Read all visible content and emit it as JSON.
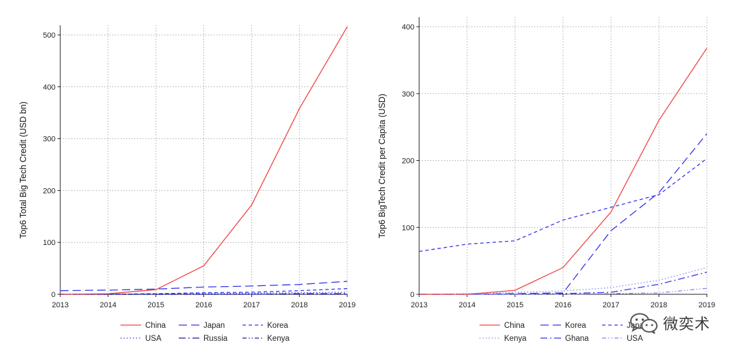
{
  "colors": {
    "red": "#ee4444",
    "blue": "#3333ee",
    "navy": "#1a1aa8",
    "grid": "#aaaaaa"
  },
  "watermark": {
    "text": "微奕术",
    "icon": "wechat-style-logo-icon"
  },
  "chart_data": [
    {
      "type": "line",
      "title": "",
      "xlabel": "",
      "ylabel": "Top6 Total Big Tech Credit (USD bn)",
      "x": [
        2013,
        2014,
        2015,
        2016,
        2017,
        2018,
        2019
      ],
      "xlim": [
        2013,
        2019
      ],
      "ylim": [
        0,
        520
      ],
      "yticks": [
        0,
        100,
        200,
        300,
        400,
        500
      ],
      "grid": true,
      "legend_position": "bottom",
      "series": [
        {
          "name": "China",
          "color": "#ee4444",
          "dash": "solid",
          "values": [
            0,
            1,
            9,
            55,
            172,
            358,
            516
          ]
        },
        {
          "name": "Japan",
          "color": "#3333ee",
          "dash": "longdash",
          "values": [
            7,
            8,
            10,
            14,
            16,
            19,
            25
          ]
        },
        {
          "name": "Korea",
          "color": "#3333ee",
          "dash": "shortdash",
          "values": [
            0,
            0,
            1,
            3,
            4,
            7,
            11
          ]
        },
        {
          "name": "USA",
          "color": "#3333ee",
          "dash": "dot",
          "values": [
            0,
            0,
            1,
            1,
            2,
            3,
            4
          ]
        },
        {
          "name": "Russia",
          "color": "#1a1aa8",
          "dash": "dashdot",
          "values": [
            0,
            0,
            0,
            0,
            0,
            1,
            1
          ]
        },
        {
          "name": "Kenya",
          "color": "#1a1aa8",
          "dash": "dashdotdot",
          "values": [
            0,
            0,
            0,
            0,
            0,
            0,
            0
          ]
        }
      ]
    },
    {
      "type": "line",
      "title": "",
      "xlabel": "",
      "ylabel": "Top6 BigTech Credit per Capita (USD)",
      "x": [
        2013,
        2014,
        2015,
        2016,
        2017,
        2018,
        2019
      ],
      "xlim": [
        2013,
        2019
      ],
      "ylim": [
        0,
        400
      ],
      "yticks": [
        0,
        100,
        200,
        300,
        400
      ],
      "grid": true,
      "legend_position": "bottom",
      "series": [
        {
          "name": "China",
          "color": "#ee4444",
          "dash": "solid",
          "values": [
            0,
            0,
            6,
            40,
            123,
            260,
            368
          ]
        },
        {
          "name": "Korea",
          "color": "#3333ee",
          "dash": "longdash",
          "values": [
            0,
            0,
            1,
            2,
            95,
            152,
            240
          ]
        },
        {
          "name": "Japan",
          "color": "#3333ee",
          "dash": "shortdash",
          "values": [
            64,
            75,
            80,
            111,
            130,
            149,
            203
          ]
        },
        {
          "name": "Kenya",
          "color": "#8888f0",
          "dash": "dot",
          "values": [
            0,
            1,
            3,
            5,
            10,
            21,
            40
          ]
        },
        {
          "name": "Ghana",
          "color": "#3333ee",
          "dash": "dashdot",
          "values": [
            0,
            0,
            0,
            1,
            3,
            15,
            33
          ]
        },
        {
          "name": "USA",
          "color": "#8888f0",
          "dash": "dashdotdot",
          "values": [
            0,
            0,
            0,
            0,
            1,
            2,
            9
          ]
        }
      ]
    }
  ]
}
